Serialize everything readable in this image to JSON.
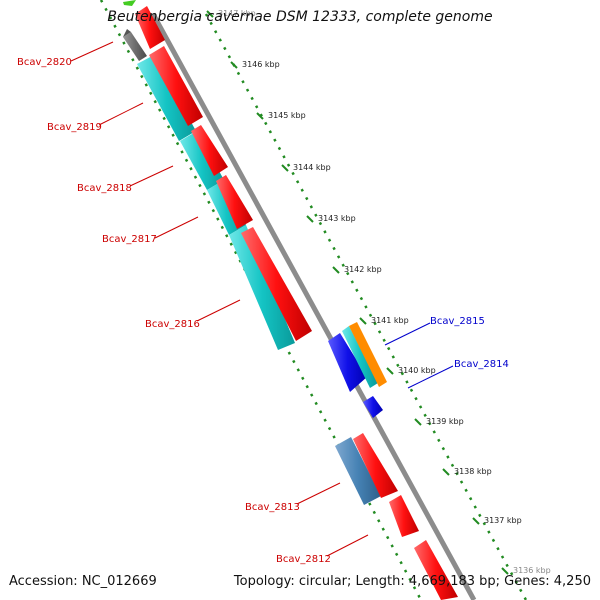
{
  "title": "Beutenbergia cavernae DSM 12333, complete genome",
  "accession": "Accession: NC_012669",
  "topology": "Topology: circular; Length: 4,669,183 bp; Genes: 4,250",
  "kbp_labels": [
    "3147 kbp",
    "3146 kbp",
    "3145 kbp",
    "3144 kbp",
    "3143 kbp",
    "3142 kbp",
    "3141 kbp",
    "3140 kbp",
    "3139 kbp",
    "3138 kbp",
    "3137 kbp",
    "3136 kbp"
  ],
  "gene_labels_left": [
    "Bcav_2820",
    "Bcav_2819",
    "Bcav_2818",
    "Bcav_2817",
    "Bcav_2816",
    "Bcav_2813",
    "Bcav_2812"
  ],
  "gene_labels_right": [
    "Bcav_2815",
    "Bcav_2814"
  ],
  "colors": {
    "red": "#ff1a1a",
    "cyan": "#1ec8c8",
    "grey": "#6e6e6e",
    "backbone": "#8c8c8c",
    "blue": "#1414e6",
    "orange": "#ff8c00",
    "steel": "#4682b4",
    "green": "#44cc22",
    "dots": "#228b22",
    "label_red": "#cc0000",
    "label_blue": "#0000cc"
  }
}
